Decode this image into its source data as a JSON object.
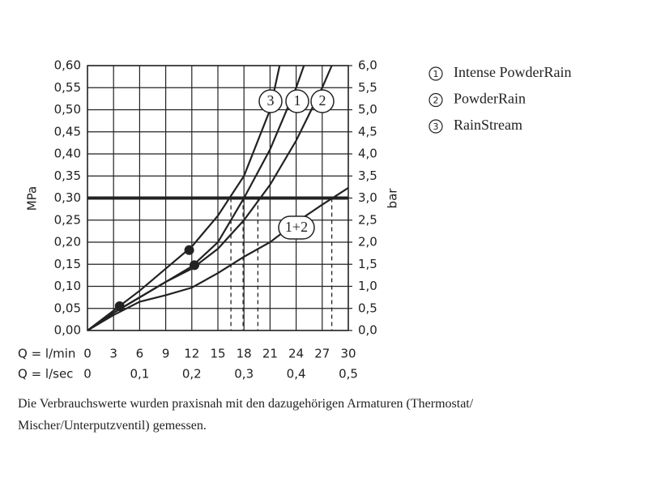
{
  "chart_data": {
    "type": "line",
    "x_axis_label": "Q = l/min",
    "x2_axis_label": "Q = l/sec",
    "y_axis_label": "MPa",
    "y2_axis_label": "bar",
    "xlim": [
      0,
      30
    ],
    "xticks": [
      0,
      3,
      6,
      9,
      12,
      15,
      18,
      21,
      24,
      27,
      30
    ],
    "x2lim": [
      0,
      0.5
    ],
    "x2ticks": [
      0,
      {
        "value": 0.1,
        "label": "0,1"
      },
      {
        "value": 0.2,
        "label": "0,2"
      },
      {
        "value": 0.3,
        "label": "0,3"
      },
      {
        "value": 0.4,
        "label": "0,4"
      },
      {
        "value": 0.5,
        "label": "0,5"
      }
    ],
    "ylim": [
      0,
      0.6
    ],
    "yticks": [
      {
        "value": 0,
        "label": "0,00"
      },
      {
        "value": 0.05,
        "label": "0,05"
      },
      {
        "value": 0.1,
        "label": "0,10"
      },
      {
        "value": 0.15,
        "label": "0,15"
      },
      {
        "value": 0.2,
        "label": "0,20"
      },
      {
        "value": 0.25,
        "label": "0,25"
      },
      {
        "value": 0.3,
        "label": "0,30"
      },
      {
        "value": 0.35,
        "label": "0,35"
      },
      {
        "value": 0.4,
        "label": "0,40"
      },
      {
        "value": 0.45,
        "label": "0,45"
      },
      {
        "value": 0.5,
        "label": "0,50"
      },
      {
        "value": 0.55,
        "label": "0,55"
      },
      {
        "value": 0.6,
        "label": "0,60"
      }
    ],
    "y2lim": [
      0,
      6
    ],
    "y2ticks": [
      {
        "value": 0,
        "label": "0,0"
      },
      {
        "value": 0.5,
        "label": "0,5"
      },
      {
        "value": 1,
        "label": "1,0"
      },
      {
        "value": 1.5,
        "label": "1,5"
      },
      {
        "value": 2,
        "label": "2,0"
      },
      {
        "value": 2.5,
        "label": "2,5"
      },
      {
        "value": 3,
        "label": "3,0"
      },
      {
        "value": 3.5,
        "label": "3,5"
      },
      {
        "value": 4,
        "label": "4,0"
      },
      {
        "value": 4.5,
        "label": "4,5"
      },
      {
        "value": 5,
        "label": "5,0"
      },
      {
        "value": 5.5,
        "label": "5,5"
      },
      {
        "value": 6,
        "label": "6,0"
      }
    ],
    "grid": true,
    "color": "#222222",
    "reference_line": 0.3,
    "dashed_x": [
      16.5,
      17.9,
      19.6,
      28.1
    ],
    "points": {
      "x": [
        3.7,
        11.7,
        12.3
      ],
      "y": [
        0.055,
        0.182,
        0.148
      ]
    },
    "series": [
      {
        "label": "1",
        "name": "Intense PowderRain",
        "x": [
          0,
          3,
          6,
          9,
          12,
          15,
          18,
          21,
          24,
          24.9
        ],
        "values": [
          0,
          0.04,
          0.075,
          0.11,
          0.145,
          0.2,
          0.3,
          0.41,
          0.55,
          0.6
        ]
      },
      {
        "label": "2",
        "name": "PowderRain",
        "x": [
          0,
          3,
          6,
          9,
          12,
          15,
          18,
          21,
          24,
          27,
          28.1
        ],
        "values": [
          0,
          0.04,
          0.075,
          0.11,
          0.14,
          0.185,
          0.25,
          0.33,
          0.43,
          0.55,
          0.6
        ]
      },
      {
        "label": "3",
        "name": "RainStream",
        "x": [
          0,
          3,
          6,
          9,
          12,
          15,
          18,
          21,
          22.1
        ],
        "values": [
          0,
          0.045,
          0.09,
          0.14,
          0.19,
          0.26,
          0.35,
          0.5,
          0.6
        ]
      },
      {
        "label": "1+2",
        "x": [
          0,
          3,
          6,
          9,
          12,
          15,
          18,
          21,
          24,
          27,
          30
        ],
        "values": [
          0,
          0.035,
          0.065,
          0.08,
          0.097,
          0.13,
          0.167,
          0.2,
          0.245,
          0.285,
          0.323
        ]
      }
    ]
  },
  "footer": [
    "Die Verbrauchswerte wurden praxisnah mit den dazugehörigen Armaturen (Thermostat/",
    "Mischer/Unterputzventil) gemessen."
  ]
}
